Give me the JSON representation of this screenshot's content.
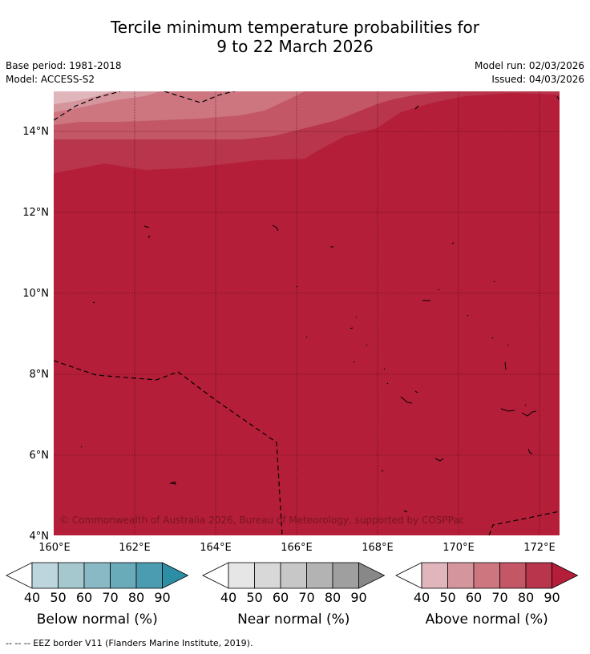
{
  "title": {
    "line1": "Tercile minimum temperature probabilities for",
    "line2": "9 to 22 March 2026"
  },
  "meta": {
    "base_period": "Base period: 1981-2018",
    "model": "Model: ACCESS-S2",
    "model_run": "Model run: 02/03/2026",
    "issued": "Issued: 04/03/2026"
  },
  "map": {
    "lat_labels": [
      "14°N",
      "12°N",
      "10°N",
      "8°N",
      "6°N",
      "4°N"
    ],
    "lon_labels": [
      "160°E",
      "162°E",
      "164°E",
      "166°E",
      "168°E",
      "170°E",
      "172°E"
    ],
    "copyright": "© Commonwealth of Australia 2026, Bureau of Meteorology, supported by COSPPac",
    "fill_color": "#b41e38"
  },
  "legends": [
    {
      "name": "Below normal (%)",
      "ticks": [
        "40",
        "50",
        "60",
        "70",
        "80",
        "90"
      ],
      "colors": [
        "#ffffff",
        "#bdd5dc",
        "#a5c8cf",
        "#88b9c4",
        "#6aabba",
        "#4b9cb0",
        "#2c8ea4"
      ]
    },
    {
      "name": "Near normal (%)",
      "ticks": [
        "40",
        "50",
        "60",
        "70",
        "80",
        "90"
      ],
      "colors": [
        "#ffffff",
        "#e6e6e6",
        "#d8d8d8",
        "#c7c7c7",
        "#b3b3b3",
        "#9f9f9f",
        "#888888"
      ]
    },
    {
      "name": "Above normal (%)",
      "ticks": [
        "40",
        "50",
        "60",
        "70",
        "80",
        "90"
      ],
      "colors": [
        "#ffffff",
        "#e0b5bb",
        "#d5959d",
        "#cd7680",
        "#c45766",
        "#b8354b",
        "#b41e38"
      ]
    }
  ],
  "footnote": "--  --  -- EEZ border V11 (Flanders Marine Institute, 2019)."
}
